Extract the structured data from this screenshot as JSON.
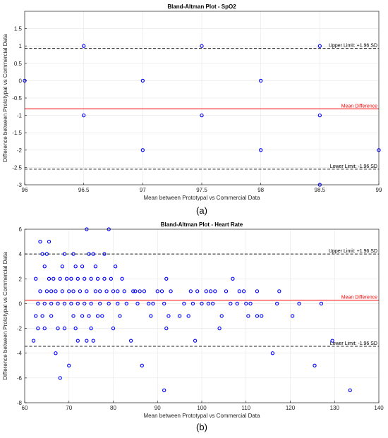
{
  "chart_data": [
    {
      "type": "scatter",
      "title": "Bland-Altman Plot - SpO2",
      "xlabel": "Mean between Prototypal vs Commercial Data",
      "ylabel": "Difference between Prototypal vs Commercial Data",
      "xlim": [
        96,
        99
      ],
      "ylim": [
        -3,
        2
      ],
      "xticks": [
        "96",
        "96.5",
        "97",
        "97.5",
        "98",
        "98.5",
        "99"
      ],
      "yticks": [
        "-3",
        "-2.5",
        "-2",
        "-1.5",
        "-1",
        "-0.5",
        "0",
        "0.5",
        "1",
        "1.5"
      ],
      "grid": true,
      "series": [
        {
          "points": [
            [
              96,
              0
            ],
            [
              96.5,
              1
            ],
            [
              96.5,
              -1
            ],
            [
              97,
              0
            ],
            [
              97,
              -2
            ],
            [
              97.5,
              1
            ],
            [
              97.5,
              -1
            ],
            [
              98,
              0
            ],
            [
              98,
              -2
            ],
            [
              98.5,
              1
            ],
            [
              98.5,
              -1
            ],
            [
              98.5,
              -3
            ],
            [
              99,
              -2
            ]
          ]
        }
      ],
      "upper_limit": 0.93,
      "mean_difference": -0.81,
      "lower_limit": -2.55,
      "annotations": {
        "upper": "Upper Limit: +1.96 SD",
        "mean": "Mean Difference",
        "lower": "Lower Limit: -1.96 SD"
      },
      "caption": "(a)"
    },
    {
      "type": "scatter",
      "title": "Bland-Altman Plot - Heart Rate",
      "xlabel": "Mean between Prototypal vs Commercial Data",
      "ylabel": "Difference between Prototypal vs Commercial Data",
      "xlim": [
        60,
        140
      ],
      "ylim": [
        -8,
        6
      ],
      "xticks": [
        "60",
        "70",
        "80",
        "90",
        "100",
        "110",
        "120",
        "130",
        "140"
      ],
      "yticks": [
        "-8",
        "-6",
        "-4",
        "-2",
        "0",
        "2",
        "4",
        "6"
      ],
      "grid": true,
      "series": [
        {
          "points": [
            [
              62,
              -3
            ],
            [
              62.5,
              2
            ],
            [
              62.5,
              -1
            ],
            [
              63,
              0
            ],
            [
              63,
              -2
            ],
            [
              63.5,
              5
            ],
            [
              63.5,
              1
            ],
            [
              64,
              4
            ],
            [
              64,
              -1
            ],
            [
              64.5,
              3
            ],
            [
              64.5,
              0
            ],
            [
              64.5,
              -2
            ],
            [
              65,
              4
            ],
            [
              65,
              1
            ],
            [
              65.5,
              5
            ],
            [
              65.5,
              2
            ],
            [
              66,
              1
            ],
            [
              66,
              0
            ],
            [
              66,
              -1
            ],
            [
              66.5,
              2
            ],
            [
              67,
              1
            ],
            [
              67,
              -4
            ],
            [
              67.5,
              0
            ],
            [
              67.5,
              -2
            ],
            [
              68,
              2
            ],
            [
              68,
              -6
            ],
            [
              68.5,
              1
            ],
            [
              68.5,
              3
            ],
            [
              69,
              4
            ],
            [
              69,
              0
            ],
            [
              69,
              -2
            ],
            [
              69.5,
              2
            ],
            [
              70,
              1
            ],
            [
              70,
              -5
            ],
            [
              70.5,
              0
            ],
            [
              70.5,
              2
            ],
            [
              71,
              1
            ],
            [
              71,
              -1
            ],
            [
              71,
              4
            ],
            [
              71.5,
              3
            ],
            [
              71.5,
              -2
            ],
            [
              72,
              2
            ],
            [
              72,
              0
            ],
            [
              72,
              -3
            ],
            [
              72.5,
              1
            ],
            [
              73,
              3
            ],
            [
              73,
              -1
            ],
            [
              73.5,
              0
            ],
            [
              73.5,
              2
            ],
            [
              74,
              6
            ],
            [
              74,
              1
            ],
            [
              74,
              -3
            ],
            [
              74.5,
              4
            ],
            [
              74.5,
              -1
            ],
            [
              75,
              2
            ],
            [
              75,
              0
            ],
            [
              75,
              -2
            ],
            [
              75.5,
              4
            ],
            [
              75.5,
              -3
            ],
            [
              76,
              1
            ],
            [
              76,
              3
            ],
            [
              76.5,
              2
            ],
            [
              76.5,
              -1
            ],
            [
              77,
              0
            ],
            [
              77,
              1
            ],
            [
              77.5,
              -1
            ],
            [
              78,
              4
            ],
            [
              78,
              2
            ],
            [
              78.5,
              1
            ],
            [
              79,
              6
            ],
            [
              79,
              0
            ],
            [
              79.5,
              2
            ],
            [
              80,
              1
            ],
            [
              80,
              -2
            ],
            [
              80.5,
              3
            ],
            [
              81,
              1
            ],
            [
              81,
              0
            ],
            [
              81.5,
              -1
            ],
            [
              82,
              2
            ],
            [
              82.5,
              1
            ],
            [
              83,
              0
            ],
            [
              84,
              -3
            ],
            [
              84.5,
              1
            ],
            [
              85,
              1
            ],
            [
              85.5,
              0
            ],
            [
              86,
              1
            ],
            [
              86.5,
              -5
            ],
            [
              87,
              1
            ],
            [
              88,
              0
            ],
            [
              88.5,
              -1
            ],
            [
              89,
              0
            ],
            [
              90,
              1
            ],
            [
              91,
              1
            ],
            [
              91.5,
              -7
            ],
            [
              91.5,
              0
            ],
            [
              92,
              2
            ],
            [
              92,
              -2
            ],
            [
              92.5,
              -1
            ],
            [
              93,
              1
            ],
            [
              95,
              -1
            ],
            [
              96,
              0
            ],
            [
              97,
              -1
            ],
            [
              97.5,
              1
            ],
            [
              98,
              0
            ],
            [
              98.5,
              -3
            ],
            [
              99,
              1
            ],
            [
              100,
              0
            ],
            [
              101,
              1
            ],
            [
              101.5,
              0
            ],
            [
              102,
              1
            ],
            [
              102.5,
              0
            ],
            [
              103,
              1
            ],
            [
              104,
              -2
            ],
            [
              104.5,
              -1
            ],
            [
              105.5,
              1
            ],
            [
              106.5,
              0
            ],
            [
              107,
              2
            ],
            [
              108,
              0
            ],
            [
              108.5,
              1
            ],
            [
              109.5,
              1
            ],
            [
              110,
              0
            ],
            [
              110.5,
              -1
            ],
            [
              111,
              0
            ],
            [
              112.5,
              1
            ],
            [
              112.5,
              -1
            ],
            [
              113.5,
              -1
            ],
            [
              116,
              -4
            ],
            [
              117,
              0
            ],
            [
              117.5,
              1
            ],
            [
              120.5,
              -1
            ],
            [
              122,
              0
            ],
            [
              125.5,
              -5
            ],
            [
              127,
              0
            ],
            [
              129.5,
              -3
            ],
            [
              133.5,
              -7
            ]
          ]
        }
      ],
      "upper_limit": 4.0,
      "mean_difference": 0.28,
      "lower_limit": -3.45,
      "annotations": {
        "upper": "Upper Limit: +1.96 SD",
        "mean": "Mean Difference",
        "lower": "Lower Limit: -1.96 SD"
      },
      "caption": "(b)"
    }
  ]
}
